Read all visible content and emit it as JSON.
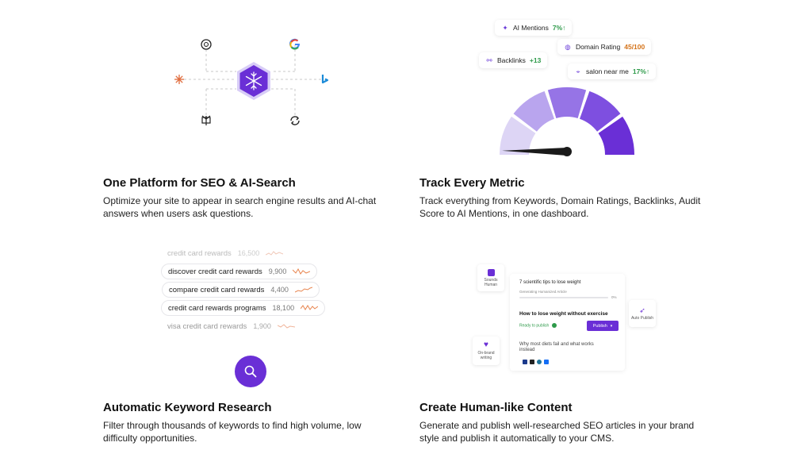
{
  "features": [
    {
      "title": "One Platform for SEO & AI-Search",
      "description": "Optimize your site to appear in search engine results and AI-chat answers when users ask questions.",
      "icons": [
        "openai-icon",
        "google-icon",
        "claude-icon",
        "bing-icon",
        "perplexity-icon",
        "sync-icon",
        "snowflake-icon"
      ]
    },
    {
      "title": "Track Every Metric",
      "description": "Track everything from Keywords, Domain Ratings, Backlinks, Audit Score to AI Mentions, in one dashboard.",
      "metrics": {
        "ai_mentions": {
          "label": "AI Mentions",
          "value": "7%↑"
        },
        "domain_rating": {
          "label": "Domain Rating",
          "value": "45/100"
        },
        "backlinks": {
          "label": "Backlinks",
          "value": "+13"
        },
        "keyword": {
          "label": "salon near me",
          "value": "17%↑"
        }
      },
      "gauge_level": 0.02
    },
    {
      "title": "Automatic Keyword Research",
      "description": "Filter through thousands of keywords to find high volume, low difficulty opportunities.",
      "keywords": [
        {
          "keyword": "credit card rewards",
          "volume": "16,500"
        },
        {
          "keyword": "discover credit card rewards",
          "volume": "9,900"
        },
        {
          "keyword": "compare credit card rewards",
          "volume": "4,400"
        },
        {
          "keyword": "credit card rewards programs",
          "volume": "18,100"
        },
        {
          "keyword": "visa credit card rewards",
          "volume": "1,900"
        }
      ]
    },
    {
      "title": "Create Human-like Content",
      "description": "Generate and publish well-researched SEO articles in your brand style and publish it automatically to your CMS.",
      "editor": {
        "article1_title": "7 scientific tips to lose weight",
        "article1_status": "Generating Humanized Article",
        "article1_progress": "0%",
        "article2_title": "How to lose weight without exercise",
        "article2_status": "Ready to publish",
        "publish_label": "Publish",
        "article3_title": "Why most diets fail and what works instead",
        "sounds_human": "Sounds Human",
        "on_brand": "On-brand writing",
        "auto_publish": "Auto Publish"
      }
    }
  ],
  "colors": {
    "accent": "#6a2fd6",
    "gauge1": "#ddd5f5",
    "gauge2": "#b9a5ee",
    "gauge3": "#9674e6",
    "gauge4": "#7e4fe0",
    "gauge5": "#6a2fd6"
  }
}
